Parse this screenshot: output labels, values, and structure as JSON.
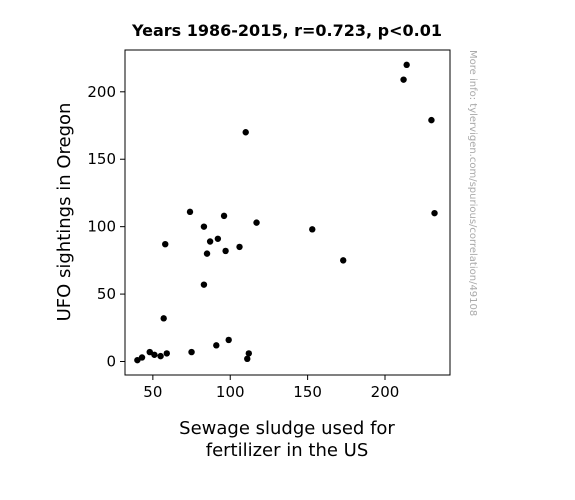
{
  "chart_data": {
    "type": "scatter",
    "title": "Years 1986-2015, r=0.723, p<0.01",
    "xlabel_lines": [
      "Sewage sludge used for",
      "fertilizer in the US"
    ],
    "ylabel": "UFO sightings in Oregon",
    "xlim": [
      32,
      242
    ],
    "ylim": [
      -10,
      231
    ],
    "xticks": [
      50,
      100,
      150,
      200
    ],
    "yticks": [
      0,
      50,
      100,
      150,
      200
    ],
    "grid": false,
    "marker_color": "#000000",
    "points": [
      {
        "x": 40,
        "y": 1
      },
      {
        "x": 43,
        "y": 3
      },
      {
        "x": 48,
        "y": 7
      },
      {
        "x": 51,
        "y": 5
      },
      {
        "x": 55,
        "y": 4
      },
      {
        "x": 57,
        "y": 32
      },
      {
        "x": 58,
        "y": 87
      },
      {
        "x": 59,
        "y": 6
      },
      {
        "x": 74,
        "y": 111
      },
      {
        "x": 75,
        "y": 7
      },
      {
        "x": 83,
        "y": 57
      },
      {
        "x": 83,
        "y": 100
      },
      {
        "x": 85,
        "y": 80
      },
      {
        "x": 87,
        "y": 89
      },
      {
        "x": 91,
        "y": 12
      },
      {
        "x": 92,
        "y": 91
      },
      {
        "x": 96,
        "y": 108
      },
      {
        "x": 97,
        "y": 82
      },
      {
        "x": 99,
        "y": 16
      },
      {
        "x": 106,
        "y": 85
      },
      {
        "x": 110,
        "y": 170
      },
      {
        "x": 111,
        "y": 2
      },
      {
        "x": 112,
        "y": 6
      },
      {
        "x": 117,
        "y": 103
      },
      {
        "x": 153,
        "y": 98
      },
      {
        "x": 173,
        "y": 75
      },
      {
        "x": 212,
        "y": 209
      },
      {
        "x": 214,
        "y": 220
      },
      {
        "x": 230,
        "y": 179
      },
      {
        "x": 232,
        "y": 110
      }
    ]
  },
  "watermark": "More info: tylervigen.com/spurious/correlation/49108"
}
